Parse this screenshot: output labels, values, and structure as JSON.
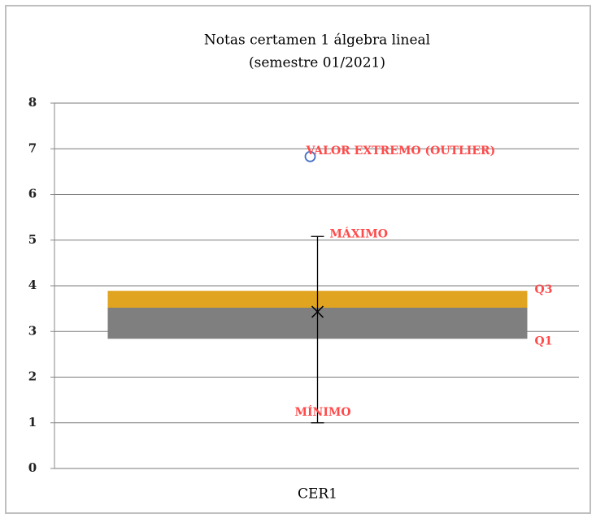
{
  "chart_data": {
    "type": "box",
    "title": "Notas certamen 1 álgebra lineal",
    "subtitle": "(semestre 01/2021)",
    "categories": [
      "CER1"
    ],
    "series": [
      {
        "min": 1.0,
        "q1": 2.84,
        "median": 3.52,
        "q3": 3.89,
        "max": 5.08,
        "mean": 3.43,
        "outliers": [
          6.83
        ]
      }
    ],
    "ylim": [
      0,
      8
    ],
    "yticks": [
      0,
      1,
      2,
      3,
      4,
      5,
      6,
      7,
      8
    ],
    "grid": true,
    "colors": {
      "lower": "#7f7f7f",
      "upper": "#e0a420",
      "whisker": "#000000",
      "outlier": "#4472c4",
      "annotation": "#ff4a4a"
    },
    "annotations": {
      "outlier": "VALOR EXTREMO (OUTLIER)",
      "max": "MÁXIMO",
      "q3": "Q3",
      "q1": "Q1",
      "min": "MÍNIMO"
    }
  }
}
